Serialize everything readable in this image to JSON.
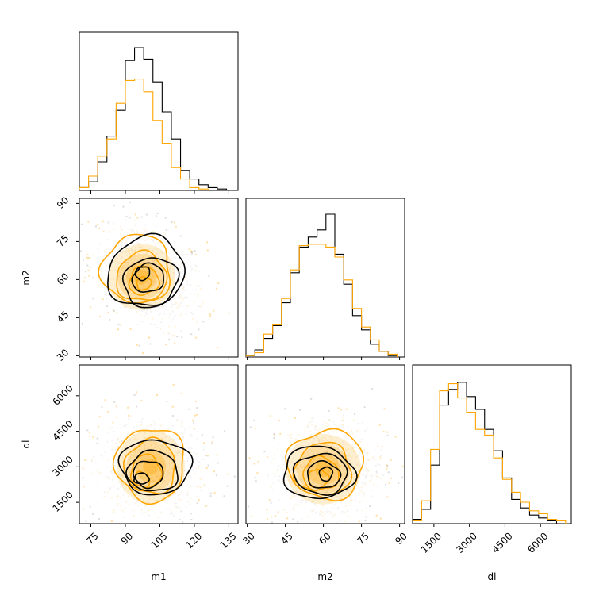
{
  "colors": {
    "black": "#000000",
    "orange": "#ffa500",
    "orange_light": "#ffd79a",
    "scatter_grey": "#9e9e9e"
  },
  "chart_data": {
    "type": "corner",
    "title": "",
    "parameters": [
      "m1",
      "m2",
      "dl"
    ],
    "axis_labels": {
      "m1": "m1",
      "m2": "m2",
      "dl": "dl"
    },
    "ranges": {
      "m1": [
        70,
        139
      ],
      "m2": [
        29.5,
        92
      ],
      "dl": [
        600,
        7300
      ]
    },
    "ticks": {
      "m1": {
        "values": [
          75,
          90,
          105,
          120,
          135
        ],
        "labels": [
          "75",
          "90",
          "105",
          "120",
          "135"
        ]
      },
      "m2": {
        "values": [
          30,
          45,
          60,
          75,
          90
        ],
        "labels": [
          "30",
          "45",
          "60",
          "75",
          "90"
        ]
      },
      "dl": {
        "values": [
          1500,
          3000,
          4500,
          6000
        ],
        "labels": [
          "1500",
          "3000",
          "4500",
          "6000"
        ]
      }
    },
    "series": [
      {
        "color": "#000000"
      },
      {
        "color": "#ffa500"
      }
    ],
    "histograms": {
      "m1": {
        "bin_edges": [
          70,
          74,
          78,
          82,
          86,
          90,
          94,
          98,
          102,
          106,
          110,
          114,
          118,
          122,
          126,
          130,
          134,
          138
        ],
        "counts": [
          [
            0.02,
            0.06,
            0.2,
            0.38,
            0.56,
            0.91,
            1.0,
            0.92,
            0.76,
            0.55,
            0.36,
            0.14,
            0.08,
            0.04,
            0.02,
            0.01,
            0.0
          ],
          [
            0.02,
            0.1,
            0.24,
            0.36,
            0.61,
            0.77,
            0.78,
            0.69,
            0.49,
            0.33,
            0.16,
            0.08,
            0.02,
            0.01,
            0.0,
            0.0,
            0.0
          ]
        ]
      },
      "m2": {
        "bin_edges": [
          29.5,
          33,
          36.5,
          40,
          43.5,
          47,
          50.5,
          54,
          57.5,
          61,
          64.5,
          68,
          71.5,
          75,
          78.5,
          82,
          85.5,
          89
        ],
        "counts": [
          [
            0.01,
            0.05,
            0.13,
            0.22,
            0.38,
            0.59,
            0.77,
            0.84,
            0.89,
            1.0,
            0.72,
            0.51,
            0.29,
            0.19,
            0.09,
            0.04,
            0.01
          ],
          [
            0.01,
            0.03,
            0.16,
            0.23,
            0.41,
            0.61,
            0.78,
            0.79,
            0.79,
            0.77,
            0.7,
            0.54,
            0.34,
            0.21,
            0.12,
            0.04,
            0.02
          ]
        ]
      },
      "dl": {
        "bin_edges": [
          600,
          980,
          1360,
          1740,
          2120,
          2500,
          2880,
          3260,
          3640,
          4020,
          4400,
          4780,
          5160,
          5540,
          5920,
          6300,
          6680,
          7060
        ],
        "counts": [
          [
            0.03,
            0.1,
            0.41,
            0.83,
            0.94,
            0.99,
            0.89,
            0.8,
            0.66,
            0.51,
            0.32,
            0.17,
            0.11,
            0.06,
            0.04,
            0.02,
            0.0
          ],
          [
            0.02,
            0.16,
            0.52,
            0.93,
            0.98,
            0.88,
            0.78,
            0.66,
            0.62,
            0.46,
            0.31,
            0.22,
            0.15,
            0.09,
            0.07,
            0.03,
            0.02
          ]
        ]
      }
    },
    "pairs": [
      {
        "x": "m1",
        "y": "m2",
        "contours": [
          {
            "center": [
              97.5,
              62.5
            ],
            "spread": [
              3.2,
              2.6
            ],
            "angle": -0.5
          },
          {
            "center": [
              100,
              60.5
            ],
            "spread": [
              7,
              5.5
            ],
            "angle": -0.4
          },
          {
            "center": [
              101,
              59
            ],
            "spread": [
              12,
              9.5
            ],
            "angle": -0.45
          },
          {
            "center": [
              99,
              63
            ],
            "spread": [
              17,
              13.5
            ],
            "angle": -0.45
          }
        ],
        "contours_orange": [
          {
            "center": [
              98,
              58.5
            ],
            "spread": [
              3.2,
              2.5
            ],
            "angle": -0.3
          },
          {
            "center": [
              98,
              59.5
            ],
            "spread": [
              6.5,
              5.5
            ],
            "angle": -0.4
          },
          {
            "center": [
              97,
              61
            ],
            "spread": [
              11,
              9.5
            ],
            "angle": -0.5
          },
          {
            "center": [
              95,
              64
            ],
            "spread": [
              15,
              13.5
            ],
            "angle": -0.6
          }
        ]
      },
      {
        "x": "m1",
        "y": "dl",
        "contours": [
          {
            "center": [
              97,
              2500
            ],
            "spread": [
              3.2,
              230
            ],
            "angle": 0.0
          },
          {
            "center": [
              100,
              2700
            ],
            "spread": [
              6.5,
              560
            ],
            "angle": 0.05
          },
          {
            "center": [
              102,
              2800
            ],
            "spread": [
              11,
              850
            ],
            "angle": 0.05
          },
          {
            "center": [
              103,
              3000
            ],
            "spread": [
              15.5,
              1150
            ],
            "angle": 0.03
          }
        ],
        "contours_orange": [
          {
            "center": [
              97,
              2400
            ],
            "spread": [
              3.4,
              380
            ],
            "angle": 0.0
          },
          {
            "center": [
              99,
              2800
            ],
            "spread": [
              6.5,
              700
            ],
            "angle": 0.0
          },
          {
            "center": [
              101,
              3000
            ],
            "spread": [
              11,
              1150
            ],
            "angle": 0.0
          },
          {
            "center": [
              101,
              3100
            ],
            "spread": [
              15,
              1550
            ],
            "angle": 0.0
          }
        ]
      },
      {
        "x": "m2",
        "y": "dl",
        "contours": [
          {
            "center": [
              61,
              2700
            ],
            "spread": [
              2.5,
              300
            ],
            "angle": 0.4
          },
          {
            "center": [
              60,
              2650
            ],
            "spread": [
              6.5,
              560
            ],
            "angle": 0.1
          },
          {
            "center": [
              59,
              2700
            ],
            "spread": [
              10.5,
              850
            ],
            "angle": 0.05
          },
          {
            "center": [
              58,
              2750
            ],
            "spread": [
              14,
              1100
            ],
            "angle": 0.05
          }
        ],
        "contours_orange": [
          {
            "center": [
              58,
              2500
            ],
            "spread": [
              4,
              380
            ],
            "angle": 0.0
          },
          {
            "center": [
              59,
              2700
            ],
            "spread": [
              7,
              700
            ],
            "angle": 0.0
          },
          {
            "center": [
              60,
              2900
            ],
            "spread": [
              11,
              1100
            ],
            "angle": 0.0
          },
          {
            "center": [
              61,
              3100
            ],
            "spread": [
              15,
              1450
            ],
            "angle": 0.0
          }
        ]
      }
    ],
    "scatter": {
      "m1": {
        "mean": 100,
        "sd": 11
      },
      "m2": {
        "mean": 61,
        "sd": 10
      },
      "dl": {
        "mean": 2900,
        "sd": 1050
      }
    }
  }
}
